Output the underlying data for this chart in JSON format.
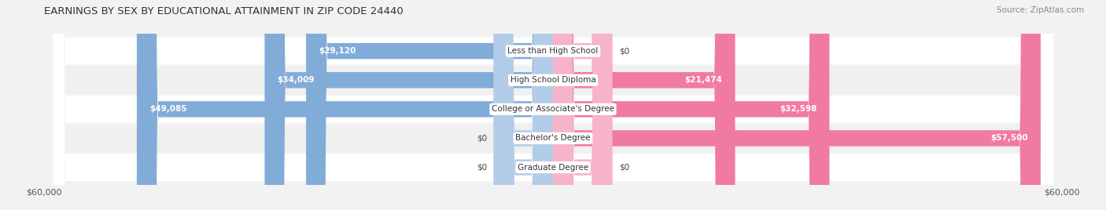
{
  "title": "EARNINGS BY SEX BY EDUCATIONAL ATTAINMENT IN ZIP CODE 24440",
  "source": "Source: ZipAtlas.com",
  "categories": [
    "Less than High School",
    "High School Diploma",
    "College or Associate's Degree",
    "Bachelor's Degree",
    "Graduate Degree"
  ],
  "male_values": [
    29120,
    34009,
    49085,
    0,
    0
  ],
  "female_values": [
    0,
    21474,
    32598,
    57500,
    0
  ],
  "max_val": 60000,
  "male_color": "#82acd8",
  "male_color_light": "#b3cce8",
  "female_color": "#f07aa0",
  "female_color_light": "#f7b3c8",
  "bg_color": "#f2f2f2",
  "row_bg_color": "#ffffff",
  "row_alt_color": "#f7f7f7",
  "legend_male_color": "#82acd8",
  "legend_female_color": "#f07aa0",
  "axis_label_left": "$60,000",
  "axis_label_right": "$60,000",
  "center_label_bg": "#ffffff",
  "title_fontsize": 9.5,
  "source_fontsize": 7.5,
  "label_fontsize": 7.5,
  "cat_fontsize": 7.5
}
